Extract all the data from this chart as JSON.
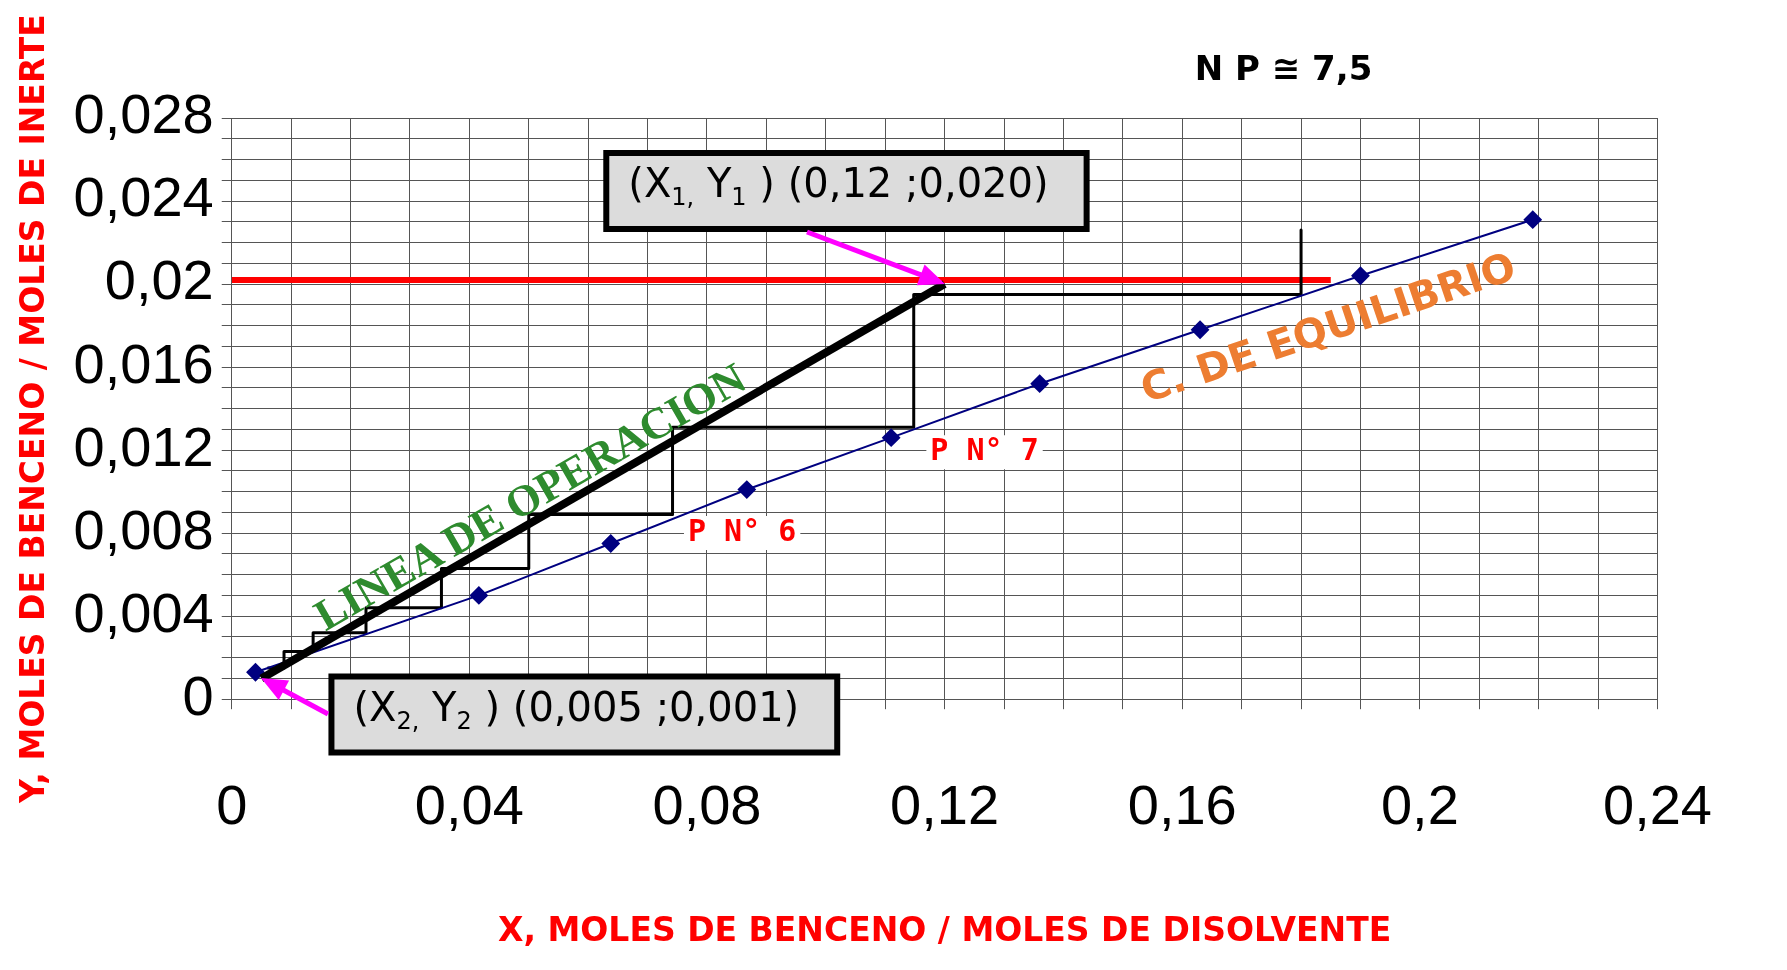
{
  "chart_data": {
    "type": "line",
    "xlabel": "X, MOLES DE BENCENO / MOLES DE DISOLVENTE",
    "ylabel": "Y, MOLES DE BENCENO / MOLES DE INERTE",
    "xlim": [
      0,
      0.24
    ],
    "ylim": [
      0,
      0.028
    ],
    "xticks": [
      {
        "value": 0,
        "label": "0"
      },
      {
        "value": 0.01,
        "label": null
      },
      {
        "value": 0.02,
        "label": null
      },
      {
        "value": 0.03,
        "label": null
      },
      {
        "value": 0.04,
        "label": "0,04"
      },
      {
        "value": 0.05,
        "label": null
      },
      {
        "value": 0.06,
        "label": null
      },
      {
        "value": 0.07,
        "label": null
      },
      {
        "value": 0.08,
        "label": "0,08"
      },
      {
        "value": 0.09,
        "label": null
      },
      {
        "value": 0.1,
        "label": null
      },
      {
        "value": 0.11,
        "label": null
      },
      {
        "value": 0.12,
        "label": "0,12"
      },
      {
        "value": 0.13,
        "label": null
      },
      {
        "value": 0.14,
        "label": null
      },
      {
        "value": 0.15,
        "label": null
      },
      {
        "value": 0.16,
        "label": "0,16"
      },
      {
        "value": 0.17,
        "label": null
      },
      {
        "value": 0.18,
        "label": null
      },
      {
        "value": 0.19,
        "label": null
      },
      {
        "value": 0.2,
        "label": "0,2"
      },
      {
        "value": 0.21,
        "label": null
      },
      {
        "value": 0.22,
        "label": null
      },
      {
        "value": 0.23,
        "label": null
      },
      {
        "value": 0.24,
        "label": "0,24"
      }
    ],
    "yticks": [
      {
        "value": 0,
        "label": "0"
      },
      {
        "value": 0.001,
        "label": null
      },
      {
        "value": 0.002,
        "label": null
      },
      {
        "value": 0.003,
        "label": null
      },
      {
        "value": 0.004,
        "label": "0,004"
      },
      {
        "value": 0.005,
        "label": null
      },
      {
        "value": 0.006,
        "label": null
      },
      {
        "value": 0.007,
        "label": null
      },
      {
        "value": 0.008,
        "label": "0,008"
      },
      {
        "value": 0.009,
        "label": null
      },
      {
        "value": 0.01,
        "label": null
      },
      {
        "value": 0.011,
        "label": null
      },
      {
        "value": 0.012,
        "label": "0,012"
      },
      {
        "value": 0.013,
        "label": null
      },
      {
        "value": 0.014,
        "label": null
      },
      {
        "value": 0.015,
        "label": null
      },
      {
        "value": 0.016,
        "label": "0,016"
      },
      {
        "value": 0.017,
        "label": null
      },
      {
        "value": 0.018,
        "label": null
      },
      {
        "value": 0.019,
        "label": null
      },
      {
        "value": 0.02,
        "label": "0,02"
      },
      {
        "value": 0.021,
        "label": null
      },
      {
        "value": 0.022,
        "label": null
      },
      {
        "value": 0.023,
        "label": null
      },
      {
        "value": 0.024,
        "label": "0,024"
      },
      {
        "value": 0.025,
        "label": null
      },
      {
        "value": 0.026,
        "label": null
      },
      {
        "value": 0.027,
        "label": null
      },
      {
        "value": 0.028,
        "label": "0,028"
      }
    ],
    "grid": true,
    "legend": false,
    "series": [
      {
        "name": "LINEA DE OPERACION",
        "color": "#000000",
        "marker": "none",
        "x": [
          0.005,
          0.12
        ],
        "values": [
          0.001,
          0.02
        ]
      },
      {
        "name": "C. DE EQUILIBRIO",
        "color": "#000080",
        "marker": "diamond",
        "x": [
          0.004,
          0.0416,
          0.0638,
          0.0867,
          0.111,
          0.136,
          0.163,
          0.19,
          0.219
        ],
        "values": [
          0.0013,
          0.005,
          0.0075,
          0.0101,
          0.0126,
          0.0152,
          0.0178,
          0.0204,
          0.0231
        ]
      },
      {
        "color": "#000000",
        "marker": "none",
        "x": [
          0.18,
          0.18,
          0.1148,
          0.1148,
          0.0742,
          0.0742,
          0.05,
          0.05,
          0.0353,
          0.0353,
          0.0226,
          0.0226,
          0.0137,
          0.0137,
          0.0088,
          0.0088,
          0.006
        ],
        "values": [
          0.0226,
          0.0195,
          0.0195,
          0.0131,
          0.0131,
          0.0089,
          0.0089,
          0.0063,
          0.0063,
          0.0044,
          0.0044,
          0.0032,
          0.0032,
          0.0023,
          0.0023,
          0.0015,
          0.0015
        ]
      },
      {
        "color": "#ff0000",
        "marker": "none",
        "x": [
          0,
          0.185
        ],
        "values": [
          0.0202,
          0.0202
        ]
      }
    ],
    "annotations": [
      "N P ≅ 7,5",
      {
        "text": "(X$_{1,}$ Y$_{1}$ ) (0,12 ;0,020)",
        "x": 0.12,
        "y": 0.02
      },
      {
        "text": "(X$_{2,}$ Y$_{2}$ ) (0,005 ;0,001)",
        "x": 0.005,
        "y": 0.001
      },
      "P N° 6",
      "P N° 7"
    ]
  }
}
